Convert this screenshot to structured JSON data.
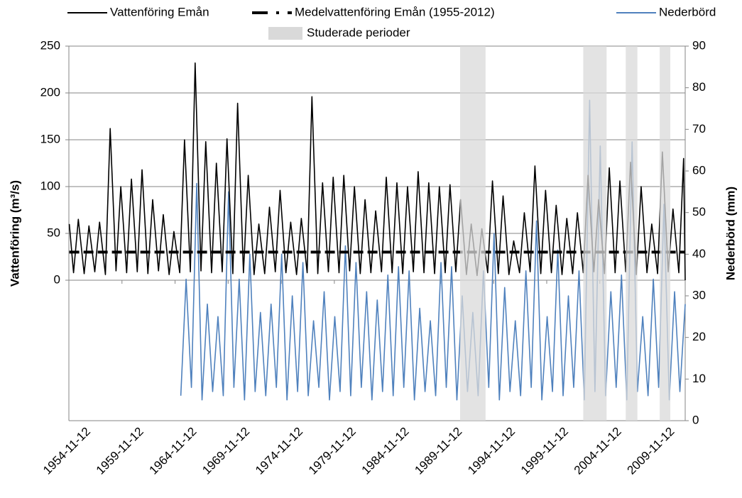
{
  "chart_data": {
    "type": "line",
    "legend": "top",
    "grid": true,
    "ylabel": "Vattenföring (m³/s)",
    "y2label": "Nederbörd (mm)",
    "xlim": [
      1954.86,
      2012.9
    ],
    "xticks": [
      {
        "value": 1954.86,
        "label": "1954-11-12"
      },
      {
        "value": 1959.86,
        "label": "1959-11-12"
      },
      {
        "value": 1964.86,
        "label": "1964-11-12"
      },
      {
        "value": 1969.86,
        "label": "1969-11-12"
      },
      {
        "value": 1974.86,
        "label": "1974-11-12"
      },
      {
        "value": 1979.86,
        "label": "1979-11-12"
      },
      {
        "value": 1984.86,
        "label": "1984-11-12"
      },
      {
        "value": 1989.86,
        "label": "1989-11-12"
      },
      {
        "value": 1994.86,
        "label": "1994-11-12"
      },
      {
        "value": 1999.86,
        "label": "1999-11-12"
      },
      {
        "value": 2004.86,
        "label": "2004-11-12"
      },
      {
        "value": 2009.86,
        "label": "2009-11-12"
      }
    ],
    "ylim": [
      -150,
      250
    ],
    "yticks": [
      0,
      50,
      100,
      150,
      200,
      250
    ],
    "y2lim": [
      0,
      90
    ],
    "y2ticks": [
      0,
      10,
      20,
      30,
      40,
      50,
      60,
      70,
      80,
      90
    ],
    "series": [
      {
        "name": "Vattenföring Emån",
        "color": "#000000",
        "axis": "y",
        "style": "solid",
        "x": [
          1954.9,
          1955.3,
          1955.75,
          1956.3,
          1956.75,
          1957.3,
          1957.75,
          1958.3,
          1958.75,
          1959.3,
          1959.75,
          1960.3,
          1960.75,
          1961.3,
          1961.75,
          1962.3,
          1962.75,
          1963.3,
          1963.75,
          1964.3,
          1964.75,
          1965.3,
          1965.75,
          1966.3,
          1966.75,
          1967.3,
          1967.75,
          1968.3,
          1968.75,
          1969.3,
          1969.75,
          1970.3,
          1970.75,
          1971.3,
          1971.75,
          1972.3,
          1972.75,
          1973.3,
          1973.75,
          1974.3,
          1974.75,
          1975.3,
          1975.75,
          1976.3,
          1976.75,
          1977.3,
          1977.75,
          1978.3,
          1978.75,
          1979.3,
          1979.75,
          1980.3,
          1980.75,
          1981.3,
          1981.75,
          1982.3,
          1982.75,
          1983.3,
          1983.75,
          1984.3,
          1984.75,
          1985.3,
          1985.75,
          1986.3,
          1986.75,
          1987.3,
          1987.75,
          1988.3,
          1988.75,
          1989.3,
          1989.75,
          1990.3,
          1990.75,
          1991.3,
          1991.75,
          1992.3,
          1992.75,
          1993.3,
          1993.75,
          1994.3,
          1994.75,
          1995.3,
          1995.75,
          1996.3,
          1996.75,
          1997.3,
          1997.75,
          1998.3,
          1998.75,
          1999.3,
          1999.75,
          2000.3,
          2000.75,
          2001.3,
          2001.75,
          2002.3,
          2002.75,
          2003.3,
          2003.75,
          2004.3,
          2004.75,
          2005.3,
          2005.75,
          2006.3,
          2006.75,
          2007.3,
          2007.75,
          2008.3,
          2008.75,
          2009.3,
          2009.75,
          2010.3,
          2010.75,
          2011.3,
          2011.75,
          2012.3,
          2012.75,
          2012.9
        ],
        "values": [
          60,
          8,
          65,
          7,
          58,
          9,
          62,
          6,
          162,
          10,
          100,
          8,
          108,
          9,
          118,
          7,
          86,
          10,
          70,
          6,
          52,
          8,
          150,
          9,
          232,
          10,
          148,
          8,
          125,
          9,
          151,
          7,
          189,
          8,
          112,
          6,
          60,
          7,
          78,
          9,
          96,
          8,
          62,
          6,
          66,
          8,
          196,
          7,
          104,
          9,
          110,
          8,
          112,
          10,
          100,
          7,
          86,
          8,
          74,
          9,
          110,
          8,
          104,
          7,
          100,
          9,
          116,
          8,
          104,
          7,
          100,
          8,
          102,
          9,
          86,
          6,
          60,
          5,
          55,
          8,
          106,
          7,
          90,
          6,
          42,
          8,
          72,
          9,
          122,
          7,
          96,
          8,
          80,
          6,
          66,
          7,
          72,
          8,
          112,
          9,
          86,
          7,
          120,
          8,
          106,
          9,
          126,
          6,
          100,
          8,
          60,
          7,
          137,
          9,
          76,
          8,
          130,
          0
        ]
      },
      {
        "name": "Medelvattenföring Emån (1955-2012)",
        "color": "#000000",
        "axis": "y",
        "style": "dash",
        "x": [
          1954.9,
          2012.9
        ],
        "values": [
          30,
          30
        ]
      },
      {
        "name": "Nederbörd",
        "color": "#4f81bd",
        "axis": "y2",
        "style": "solid",
        "x": [
          1965.4,
          1965.9,
          1966.4,
          1966.9,
          1967.4,
          1967.9,
          1968.4,
          1968.9,
          1969.4,
          1969.9,
          1970.4,
          1970.9,
          1971.4,
          1971.9,
          1972.4,
          1972.9,
          1973.4,
          1973.9,
          1974.4,
          1974.9,
          1975.4,
          1975.9,
          1976.4,
          1976.9,
          1977.4,
          1977.9,
          1978.4,
          1978.9,
          1979.4,
          1979.9,
          1980.4,
          1980.9,
          1981.4,
          1981.9,
          1982.4,
          1982.9,
          1983.4,
          1983.9,
          1984.4,
          1984.9,
          1985.4,
          1985.9,
          1986.4,
          1986.9,
          1987.4,
          1987.9,
          1988.4,
          1988.9,
          1989.4,
          1989.9,
          1990.4,
          1990.9,
          1991.4,
          1991.9,
          1992.4,
          1992.9,
          1993.4,
          1993.9,
          1994.4,
          1994.9,
          1995.4,
          1995.9,
          1996.4,
          1996.9,
          1997.4,
          1997.9,
          1998.4,
          1998.9,
          1999.4,
          1999.9,
          2000.4,
          2000.9,
          2001.4,
          2001.9,
          2002.4,
          2002.9,
          2003.4,
          2003.9,
          2004.4,
          2004.9,
          2005.4,
          2005.9,
          2006.4,
          2006.9,
          2007.4,
          2007.9,
          2008.4,
          2008.9,
          2009.4,
          2009.9,
          2010.4,
          2010.9,
          2011.4,
          2011.9,
          2012.4,
          2012.9
        ],
        "values": [
          6,
          34,
          8,
          57,
          5,
          28,
          7,
          25,
          6,
          55,
          8,
          34,
          5,
          40,
          7,
          26,
          6,
          28,
          8,
          40,
          5,
          30,
          7,
          38,
          6,
          24,
          8,
          31,
          5,
          25,
          7,
          42,
          6,
          38,
          8,
          31,
          5,
          29,
          7,
          35,
          6,
          37,
          8,
          36,
          5,
          27,
          7,
          24,
          6,
          38,
          8,
          37,
          5,
          30,
          7,
          26,
          6,
          36,
          8,
          45,
          5,
          32,
          7,
          24,
          6,
          36,
          8,
          48,
          5,
          25,
          7,
          41,
          6,
          30,
          8,
          36,
          5,
          77,
          7,
          66,
          6,
          31,
          8,
          35,
          5,
          67,
          7,
          25,
          6,
          34,
          8,
          52,
          5,
          31,
          7,
          28
        ]
      }
    ],
    "periods": {
      "name": "Studerade perioder",
      "color": "#d9d9d9",
      "ranges": [
        [
          1991.7,
          1994.1
        ],
        [
          2003.3,
          2005.5
        ],
        [
          2007.3,
          2008.4
        ],
        [
          2010.5,
          2011.5
        ]
      ]
    }
  }
}
